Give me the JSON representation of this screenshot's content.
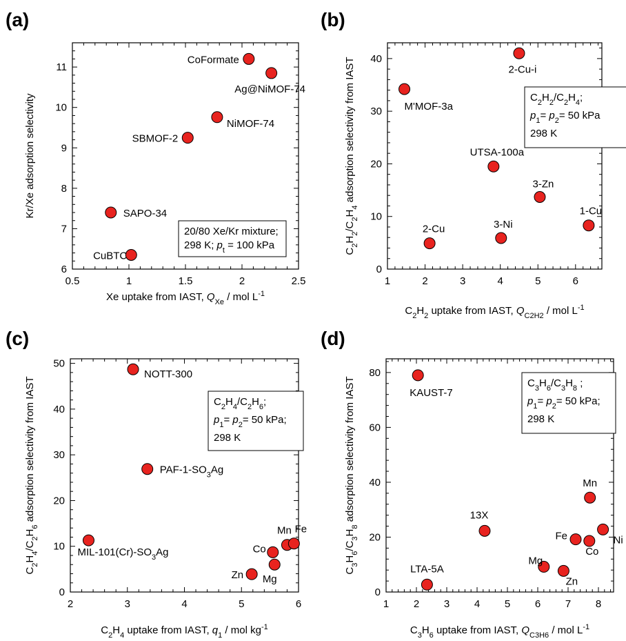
{
  "chart_data": [
    {
      "panel": "(a)",
      "type": "scatter",
      "xlim": [
        0.5,
        2.5
      ],
      "ylim": [
        6,
        11.6
      ],
      "xticks": [
        "0.5",
        "1",
        "1.5",
        "2",
        "2.5"
      ],
      "yticks": [
        "6",
        "7",
        "8",
        "9",
        "10",
        "11"
      ],
      "xlabel": {
        "pre": "Xe uptake from IAST, ",
        "sym": "Q",
        "sub": "Xe",
        "post": " / mol L",
        "sup": "-1"
      },
      "ylabel": [
        {
          "t": "Kr/Xe adsorption selectivity"
        }
      ],
      "note": [
        [
          {
            "t": "20/80 Xe/Kr mixture;"
          }
        ],
        [
          {
            "t": "298 K; "
          },
          {
            "t": "p",
            "i": true
          },
          {
            "t": "t",
            "sub": true
          },
          {
            "t": " = 100 kPa"
          }
        ]
      ],
      "points": [
        {
          "x": 1.02,
          "y": 6.35,
          "label": "CuBTC"
        },
        {
          "x": 0.84,
          "y": 7.4,
          "label": "SAPO-34"
        },
        {
          "x": 1.52,
          "y": 9.25,
          "label": "SBMOF-2"
        },
        {
          "x": 1.78,
          "y": 9.76,
          "label": "NiMOF-74"
        },
        {
          "x": 2.06,
          "y": 11.2,
          "label": "CoFormate"
        },
        {
          "x": 2.26,
          "y": 10.85,
          "label": "Ag@NiMOF-74"
        }
      ]
    },
    {
      "panel": "(b)",
      "type": "scatter",
      "xlim": [
        1,
        6.7
      ],
      "ylim": [
        0,
        43
      ],
      "xticks": [
        "1",
        "2",
        "3",
        "4",
        "5",
        "6"
      ],
      "yticks": [
        "0",
        "10",
        "20",
        "30",
        "40"
      ],
      "xlabel": {
        "pre": "C2H2 uptake from IAST, ",
        "sym": "Q",
        "sub": "C2H2",
        "post": " / mol L",
        "sup": "-1"
      },
      "ylabel": [
        {
          "t": "C"
        },
        {
          "t": "2",
          "sub": true
        },
        {
          "t": "H"
        },
        {
          "t": "2",
          "sub": true
        },
        {
          "t": "/C"
        },
        {
          "t": "2",
          "sub": true
        },
        {
          "t": "H"
        },
        {
          "t": "4",
          "sub": true
        },
        {
          "t": " adsorption selectivity from IAST"
        }
      ],
      "note": [
        [
          {
            "t": "C"
          },
          {
            "t": "2",
            "sub": true
          },
          {
            "t": "H"
          },
          {
            "t": "2",
            "sub": true
          },
          {
            "t": "/C"
          },
          {
            "t": "2",
            "sub": true
          },
          {
            "t": "H"
          },
          {
            "t": "4",
            "sub": true
          },
          {
            "t": ";"
          }
        ],
        [
          {
            "t": "p",
            "i": true
          },
          {
            "t": "1",
            "sub": true
          },
          {
            "t": "= "
          },
          {
            "t": "p",
            "i": true
          },
          {
            "t": "2",
            "sub": true
          },
          {
            "t": "= 50 kPa"
          }
        ],
        [
          {
            "t": "298 K"
          }
        ]
      ],
      "points": [
        {
          "x": 1.45,
          "y": 34.2,
          "label": "M'MOF-3a"
        },
        {
          "x": 4.5,
          "y": 41.0,
          "label": "2-Cu-i"
        },
        {
          "x": 3.82,
          "y": 19.5,
          "label": "UTSA-100a"
        },
        {
          "x": 5.05,
          "y": 13.7,
          "label": "3-Zn"
        },
        {
          "x": 6.35,
          "y": 8.3,
          "label": "1-Cu"
        },
        {
          "x": 2.12,
          "y": 4.9,
          "label": "2-Cu"
        },
        {
          "x": 4.02,
          "y": 5.9,
          "label": "3-Ni"
        }
      ]
    },
    {
      "panel": "(c)",
      "type": "scatter",
      "xlim": [
        2,
        6
      ],
      "ylim": [
        0,
        51
      ],
      "xticks": [
        "2",
        "3",
        "4",
        "5",
        "6"
      ],
      "yticks": [
        "0",
        "10",
        "20",
        "30",
        "40",
        "50"
      ],
      "xlabel": {
        "pre": "C2H4 uptake from IAST, ",
        "sym": "q",
        "sub": "1",
        "post": " / mol kg",
        "sup": "-1"
      },
      "ylabel": [
        {
          "t": "C"
        },
        {
          "t": "2",
          "sub": true
        },
        {
          "t": "H"
        },
        {
          "t": "4",
          "sub": true
        },
        {
          "t": "/C"
        },
        {
          "t": "2",
          "sub": true
        },
        {
          "t": "H"
        },
        {
          "t": "6",
          "sub": true
        },
        {
          "t": " adsorption selectivity from IAST"
        }
      ],
      "note": [
        [
          {
            "t": "C"
          },
          {
            "t": "2",
            "sub": true
          },
          {
            "t": "H"
          },
          {
            "t": "4",
            "sub": true
          },
          {
            "t": "/C"
          },
          {
            "t": "2",
            "sub": true
          },
          {
            "t": "H"
          },
          {
            "t": "6",
            "sub": true
          },
          {
            "t": ";"
          }
        ],
        [
          {
            "t": "p",
            "i": true
          },
          {
            "t": "1",
            "sub": true
          },
          {
            "t": "= "
          },
          {
            "t": "p",
            "i": true
          },
          {
            "t": "2",
            "sub": true
          },
          {
            "t": "= 50 kPa;"
          }
        ],
        [
          {
            "t": "298 K"
          }
        ]
      ],
      "points": [
        {
          "x": 3.1,
          "y": 48.7,
          "label": "NOTT-300"
        },
        {
          "x": 3.35,
          "y": 26.9,
          "label": "PAF-1-SO3Ag"
        },
        {
          "x": 2.32,
          "y": 11.3,
          "label": "MIL-101(Cr)-SO3Ag"
        },
        {
          "x": 5.55,
          "y": 8.7,
          "label": "Co"
        },
        {
          "x": 5.8,
          "y": 10.3,
          "label": "Mn"
        },
        {
          "x": 5.92,
          "y": 10.6,
          "label": "Fe"
        },
        {
          "x": 5.58,
          "y": 6.0,
          "label": "Mg"
        },
        {
          "x": 5.18,
          "y": 3.9,
          "label": "Zn"
        }
      ]
    },
    {
      "panel": "(d)",
      "type": "scatter",
      "xlim": [
        1,
        8.5
      ],
      "ylim": [
        0,
        85
      ],
      "xticks": [
        "1",
        "2",
        "3",
        "4",
        "5",
        "6",
        "7",
        "8"
      ],
      "yticks": [
        "0",
        "20",
        "40",
        "60",
        "80"
      ],
      "xlabel": {
        "pre": "C3H6 uptake from IAST, ",
        "sym": "Q",
        "sub": "C3H6",
        "post": " / mol L",
        "sup": "-1"
      },
      "ylabel": [
        {
          "t": "C"
        },
        {
          "t": "3",
          "sub": true
        },
        {
          "t": "H"
        },
        {
          "t": "6",
          "sub": true
        },
        {
          "t": "/C"
        },
        {
          "t": "3",
          "sub": true
        },
        {
          "t": "H"
        },
        {
          "t": "8",
          "sub": true
        },
        {
          "t": " adsorption selectivity from IAST"
        }
      ],
      "note": [
        [
          {
            "t": "C"
          },
          {
            "t": "3",
            "sub": true
          },
          {
            "t": "H"
          },
          {
            "t": "6",
            "sub": true
          },
          {
            "t": "/C"
          },
          {
            "t": "3",
            "sub": true
          },
          {
            "t": "H"
          },
          {
            "t": "8",
            "sub": true
          },
          {
            "t": " ;"
          }
        ],
        [
          {
            "t": "p",
            "i": true
          },
          {
            "t": "1",
            "sub": true
          },
          {
            "t": "= "
          },
          {
            "t": "p",
            "i": true
          },
          {
            "t": "2",
            "sub": true
          },
          {
            "t": "= 50 kPa;"
          }
        ],
        [
          {
            "t": "298 K"
          }
        ]
      ],
      "points": [
        {
          "x": 2.05,
          "y": 79.0,
          "label": "KAUST-7"
        },
        {
          "x": 4.25,
          "y": 22.3,
          "label": "13X"
        },
        {
          "x": 2.35,
          "y": 2.7,
          "label": "LTA-5A"
        },
        {
          "x": 7.72,
          "y": 34.4,
          "label": "Mn"
        },
        {
          "x": 7.25,
          "y": 19.2,
          "label": "Fe"
        },
        {
          "x": 7.7,
          "y": 18.6,
          "label": "Co"
        },
        {
          "x": 8.15,
          "y": 22.8,
          "label": "Ni"
        },
        {
          "x": 6.2,
          "y": 9.2,
          "label": "Mg"
        },
        {
          "x": 6.85,
          "y": 7.7,
          "label": "Zn"
        }
      ]
    }
  ]
}
